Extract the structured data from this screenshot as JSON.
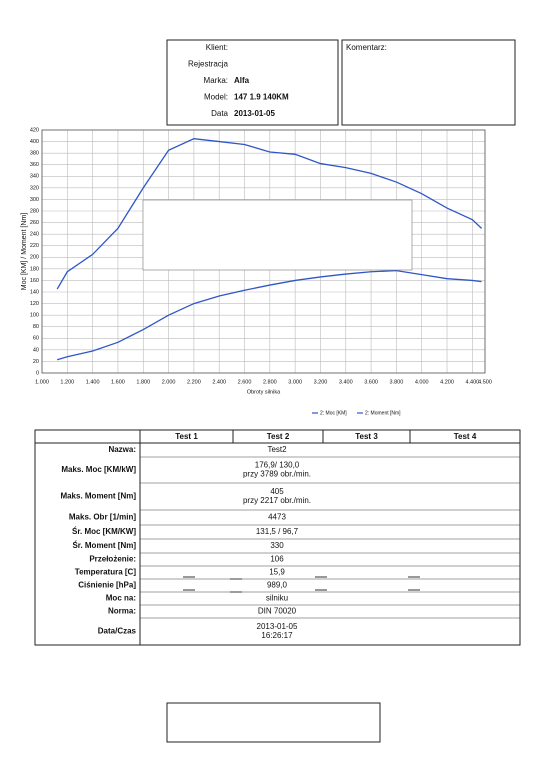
{
  "header": {
    "fields": [
      {
        "label": "Klient:"
      },
      {
        "label": "Rejestracja"
      },
      {
        "label": "Marka:",
        "value": "Alfa"
      },
      {
        "label": "Model:",
        "value": "147 1.9 140KM"
      },
      {
        "label": "Data",
        "value": "2013-01-05"
      }
    ],
    "comment_label": "Komentarz:"
  },
  "chart_data": {
    "type": "line",
    "y_label": "Moc [KM] / Moment [Nm]",
    "x_label": "Obroty silnika",
    "x": [
      1120,
      1200,
      1400,
      1600,
      1800,
      2000,
      2200,
      2400,
      2600,
      2800,
      3000,
      3200,
      3400,
      3600,
      3800,
      4000,
      4200,
      4400,
      4473
    ],
    "series": [
      {
        "name": "2: Moc [KM]",
        "color": "#2f56c8",
        "values": [
          23,
          28,
          38,
          53,
          75,
          100,
          120,
          133,
          143,
          152,
          160,
          166,
          171,
          175,
          177,
          170,
          163,
          160,
          158
        ]
      },
      {
        "name": "2: Moment [Nm]",
        "color": "#2f56c8",
        "values": [
          145,
          175,
          205,
          250,
          320,
          385,
          405,
          400,
          395,
          382,
          378,
          362,
          355,
          345,
          330,
          310,
          285,
          265,
          250
        ]
      }
    ],
    "xlim": [
      1000,
      4500
    ],
    "xticks": [
      {
        "value": 1000,
        "label": "1.000"
      },
      {
        "value": 1200,
        "label": "1.200"
      },
      {
        "value": 1400,
        "label": "1.400"
      },
      {
        "value": 1600,
        "label": "1.600"
      },
      {
        "value": 1800,
        "label": "1.800"
      },
      {
        "value": 2000,
        "label": "2.000"
      },
      {
        "value": 2200,
        "label": "2.200"
      },
      {
        "value": 2400,
        "label": "2.400"
      },
      {
        "value": 2600,
        "label": "2.600"
      },
      {
        "value": 2800,
        "label": "2.800"
      },
      {
        "value": 3000,
        "label": "3.000"
      },
      {
        "value": 3200,
        "label": "3.200"
      },
      {
        "value": 3400,
        "label": "3.400"
      },
      {
        "value": 3600,
        "label": "3.600"
      },
      {
        "value": 3800,
        "label": "3.800"
      },
      {
        "value": 4000,
        "label": "4.000"
      },
      {
        "value": 4200,
        "label": "4.200"
      },
      {
        "value": 4400,
        "label": "4.400"
      },
      {
        "value": 4500,
        "label": "4.500"
      }
    ],
    "ylim": [
      0,
      420
    ],
    "yticks": [
      0,
      20,
      40,
      60,
      80,
      100,
      120,
      140,
      160,
      180,
      200,
      220,
      240,
      260,
      280,
      300,
      320,
      340,
      360,
      380,
      400,
      420
    ],
    "grid": true
  },
  "table": {
    "columns": [
      "Test 1",
      "Test 2",
      "Test 3",
      "Test 4"
    ],
    "rows": [
      {
        "label": "Nazwa:",
        "lines": [
          "Test2"
        ]
      },
      {
        "label": "Maks. Moc [KM/kW]",
        "lines": [
          "176,9/ 130,0",
          "przy 3789 obr./min."
        ]
      },
      {
        "label": "Maks. Moment [Nm]",
        "lines": [
          "405",
          "przy 2217 obr./min."
        ]
      },
      {
        "label": "Maks. Obr [1/min]",
        "lines": [
          "4473"
        ]
      },
      {
        "label": "Śr. Moc [KM/KW]",
        "lines": [
          "131,5 / 96,7"
        ]
      },
      {
        "label": "Śr. Moment [Nm]",
        "lines": [
          "330"
        ]
      },
      {
        "label": "Przełożenie:",
        "lines": [
          "106"
        ]
      },
      {
        "label": "Temperatura [C]",
        "lines": [
          "15,9"
        ]
      },
      {
        "label": "Ciśnienie [hPa]",
        "lines": [
          "989,0"
        ]
      },
      {
        "label": "Moc na:",
        "lines": [
          "silniku"
        ]
      },
      {
        "label": "Norma:",
        "lines": [
          "DIN 70020"
        ]
      },
      {
        "label": "Data/Czas",
        "lines": [
          "2013-01-05",
          "16:26:17"
        ]
      }
    ]
  }
}
